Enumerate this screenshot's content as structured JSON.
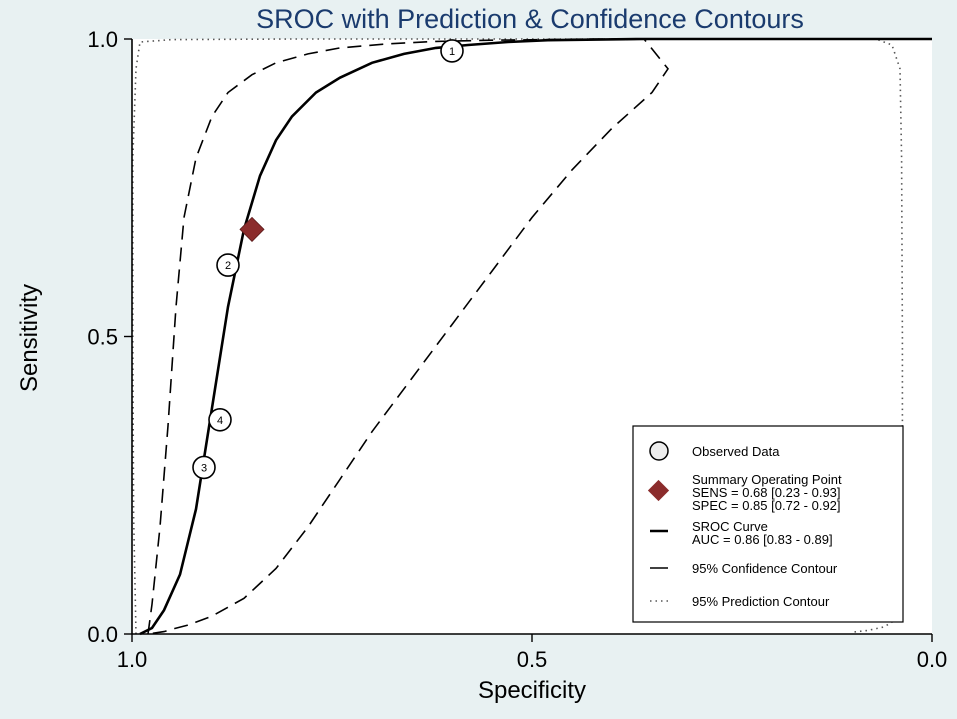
{
  "chart_data": {
    "type": "line",
    "title": "SROC with Prediction & Confidence Contours",
    "xlabel": "Specificity",
    "ylabel": "Sensitivity",
    "xlim": [
      1.0,
      0.0
    ],
    "ylim": [
      0.0,
      1.0
    ],
    "x_reversed": true,
    "xticks": [
      "1.0",
      "0.5",
      "0.0"
    ],
    "yticks": [
      "0.0",
      "0.5",
      "1.0"
    ],
    "grid": false,
    "legend_position": "bottom-right",
    "observed_data": [
      {
        "id": "1",
        "specificity": 0.6,
        "sensitivity": 0.98
      },
      {
        "id": "2",
        "specificity": 0.88,
        "sensitivity": 0.62
      },
      {
        "id": "3",
        "specificity": 0.91,
        "sensitivity": 0.28
      },
      {
        "id": "4",
        "specificity": 0.89,
        "sensitivity": 0.36
      }
    ],
    "summary_point": {
      "specificity": 0.85,
      "sensitivity": 0.68
    },
    "sroc_curve": {
      "specificity": [
        0.99,
        0.975,
        0.96,
        0.94,
        0.92,
        0.9,
        0.88,
        0.86,
        0.84,
        0.82,
        0.8,
        0.77,
        0.74,
        0.7,
        0.66,
        0.62,
        0.58,
        0.53,
        0.48,
        0.42,
        0.36,
        0.3,
        0.2,
        0.1,
        0.0
      ],
      "sensitivity": [
        0.0,
        0.01,
        0.04,
        0.1,
        0.21,
        0.38,
        0.55,
        0.68,
        0.77,
        0.83,
        0.87,
        0.91,
        0.935,
        0.96,
        0.975,
        0.985,
        0.99,
        0.995,
        0.998,
        0.999,
        1.0,
        1.0,
        1.0,
        1.0,
        1.0
      ]
    },
    "confidence_contour": {
      "specificity": [
        0.98,
        0.975,
        0.965,
        0.955,
        0.945,
        0.935,
        0.92,
        0.9,
        0.88,
        0.85,
        0.82,
        0.78,
        0.74,
        0.68,
        0.62,
        0.55,
        0.48,
        0.42,
        0.36,
        0.33,
        0.35,
        0.4,
        0.45,
        0.5,
        0.55,
        0.6,
        0.65,
        0.7,
        0.74,
        0.78,
        0.82,
        0.86,
        0.9,
        0.93,
        0.95,
        0.96,
        0.975,
        0.98
      ],
      "sensitivity": [
        0.0,
        0.05,
        0.18,
        0.35,
        0.55,
        0.7,
        0.8,
        0.87,
        0.91,
        0.94,
        0.96,
        0.975,
        0.985,
        0.992,
        0.996,
        0.998,
        0.999,
        1.0,
        1.0,
        0.95,
        0.91,
        0.85,
        0.78,
        0.7,
        0.61,
        0.52,
        0.43,
        0.34,
        0.26,
        0.18,
        0.11,
        0.06,
        0.03,
        0.015,
        0.008,
        0.004,
        0.001,
        0.0
      ]
    },
    "prediction_contour": {
      "specificity": [
        0.995,
        0.998,
        0.999,
        0.999,
        0.995,
        0.99,
        0.95,
        0.8,
        0.6,
        0.4,
        0.2,
        0.07,
        0.05,
        0.04,
        0.038,
        0.037,
        0.037,
        0.04,
        0.05,
        0.06,
        0.08,
        0.1
      ],
      "sensitivity": [
        0.0,
        0.2,
        0.5,
        0.8,
        0.95,
        0.995,
        0.999,
        1.0,
        1.0,
        1.0,
        1.0,
        1.0,
        0.99,
        0.95,
        0.8,
        0.5,
        0.2,
        0.05,
        0.02,
        0.012,
        0.006,
        0.003
      ]
    },
    "legend": {
      "observed": "Observed Data",
      "summary_title": "Summary Operating Point",
      "sens": "SENS = 0.68 [0.23 - 0.93]",
      "spec": "SPEC = 0.85 [0.72 - 0.92]",
      "sroc_title": "SROC Curve",
      "auc": "AUC = 0.86 [0.83 - 0.89]",
      "confidence": "95% Confidence Contour",
      "prediction": "95% Prediction Contour"
    },
    "colors": {
      "background": "#e8f1f2",
      "title": "#1a3b6e",
      "summary_point": "#8b2c2c",
      "lines": "#000000"
    }
  }
}
